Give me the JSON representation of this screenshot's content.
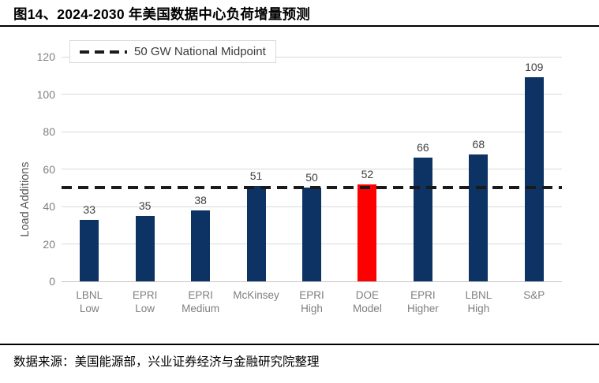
{
  "figure": {
    "title": "图14、2024-2030 年美国数据中心负荷增量预测",
    "source_note": "数据来源：美国能源部，兴业证券经济与金融研究院整理"
  },
  "chart_data": {
    "type": "bar",
    "categories": [
      "LBNL Low",
      "EPRI Low",
      "EPRI Medium",
      "McKinsey",
      "EPRI High",
      "DOE Model",
      "EPRI Higher",
      "LBNL High",
      "S&P"
    ],
    "values": [
      33,
      35,
      38,
      51,
      50,
      52,
      66,
      68,
      109
    ],
    "highlight_index": 5,
    "highlight_category": "DOE Model",
    "ylabel": "Load Additions",
    "xlabel": "",
    "ylim": [
      0,
      120
    ],
    "ytick_step": 20,
    "grid": true,
    "legend": {
      "label": "50 GW National Midpoint",
      "position": "top-left"
    },
    "reference_line": {
      "value": 50,
      "style": "dashed"
    },
    "colors": {
      "bar": "#0d3364",
      "highlight": "#fe0000",
      "reference_line": "#1a1a1a",
      "gridline": "#d9d9d9",
      "axis_text": "#7f7f7f",
      "value_label": "#404040"
    }
  }
}
